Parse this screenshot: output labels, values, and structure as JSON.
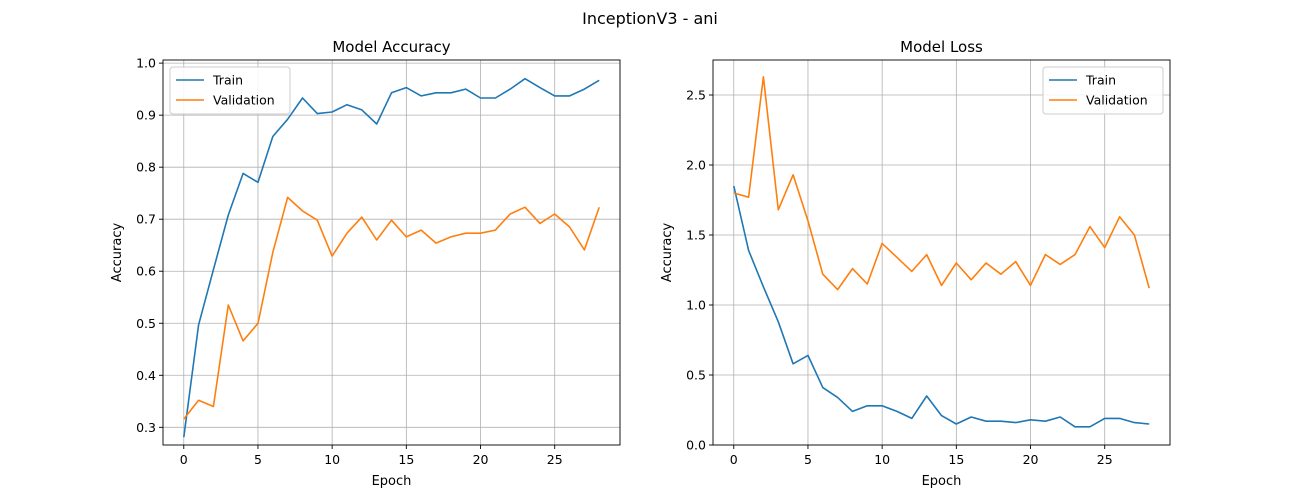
{
  "figure": {
    "suptitle": "InceptionV3 - ani"
  },
  "colors": {
    "train": "#1f77b4",
    "validation": "#ff7f0e",
    "grid": "#b0b0b0",
    "axes": "#000000"
  },
  "chart_data": [
    {
      "type": "line",
      "title": "Model Accuracy",
      "xlabel": "Epoch",
      "ylabel": "Accuracy",
      "grid": true,
      "legend": "top-left",
      "xlim": [
        -1.4,
        29.4
      ],
      "ylim": [
        0.266,
        1.006
      ],
      "xticks": [
        0,
        5,
        10,
        15,
        20,
        25
      ],
      "yticks": [
        0.3,
        0.4,
        0.5,
        0.6,
        0.7,
        0.8,
        0.9,
        1.0
      ],
      "ytick_labels": [
        "0.3",
        "0.4",
        "0.5",
        "0.6",
        "0.7",
        "0.8",
        "0.9",
        "1.0"
      ],
      "x": [
        0,
        1,
        2,
        3,
        4,
        5,
        6,
        7,
        8,
        9,
        10,
        11,
        12,
        13,
        14,
        15,
        16,
        17,
        18,
        19,
        20,
        21,
        22,
        23,
        24,
        25,
        26,
        27,
        28
      ],
      "series": [
        {
          "name": "Train",
          "color": "#1f77b4",
          "values": [
            0.281,
            0.497,
            0.603,
            0.708,
            0.788,
            0.771,
            0.859,
            0.892,
            0.933,
            0.903,
            0.906,
            0.92,
            0.91,
            0.883,
            0.943,
            0.953,
            0.937,
            0.943,
            0.943,
            0.95,
            0.933,
            0.933,
            0.95,
            0.97,
            0.953,
            0.937,
            0.937,
            0.95,
            0.967
          ]
        },
        {
          "name": "Validation",
          "color": "#ff7f0e",
          "values": [
            0.316,
            0.352,
            0.34,
            0.535,
            0.466,
            0.5,
            0.636,
            0.742,
            0.716,
            0.698,
            0.629,
            0.673,
            0.704,
            0.66,
            0.698,
            0.666,
            0.679,
            0.654,
            0.666,
            0.673,
            0.673,
            0.679,
            0.71,
            0.723,
            0.692,
            0.71,
            0.685,
            0.641,
            0.723
          ]
        }
      ]
    },
    {
      "type": "line",
      "title": "Model Loss",
      "xlabel": "Epoch",
      "ylabel": "Accuracy",
      "grid": true,
      "legend": "top-right",
      "xlim": [
        -1.4,
        29.4
      ],
      "ylim": [
        0.0,
        2.75
      ],
      "xticks": [
        0,
        5,
        10,
        15,
        20,
        25
      ],
      "yticks": [
        0.0,
        0.5,
        1.0,
        1.5,
        2.0,
        2.5
      ],
      "ytick_labels": [
        "0.0",
        "0.5",
        "1.0",
        "1.5",
        "2.0",
        "2.5"
      ],
      "x": [
        0,
        1,
        2,
        3,
        4,
        5,
        6,
        7,
        8,
        9,
        10,
        11,
        12,
        13,
        14,
        15,
        16,
        17,
        18,
        19,
        20,
        21,
        22,
        23,
        24,
        25,
        26,
        27,
        28
      ],
      "series": [
        {
          "name": "Train",
          "color": "#1f77b4",
          "values": [
            1.85,
            1.39,
            1.13,
            0.88,
            0.58,
            0.64,
            0.41,
            0.34,
            0.24,
            0.28,
            0.28,
            0.24,
            0.19,
            0.35,
            0.21,
            0.15,
            0.2,
            0.17,
            0.17,
            0.16,
            0.18,
            0.17,
            0.2,
            0.13,
            0.13,
            0.19,
            0.19,
            0.16,
            0.15
          ]
        },
        {
          "name": "Validation",
          "color": "#ff7f0e",
          "values": [
            1.8,
            1.77,
            2.63,
            1.68,
            1.93,
            1.6,
            1.22,
            1.11,
            1.26,
            1.15,
            1.44,
            1.34,
            1.24,
            1.36,
            1.14,
            1.3,
            1.18,
            1.3,
            1.22,
            1.31,
            1.14,
            1.36,
            1.29,
            1.36,
            1.56,
            1.41,
            1.63,
            1.5,
            1.12
          ]
        }
      ]
    }
  ]
}
